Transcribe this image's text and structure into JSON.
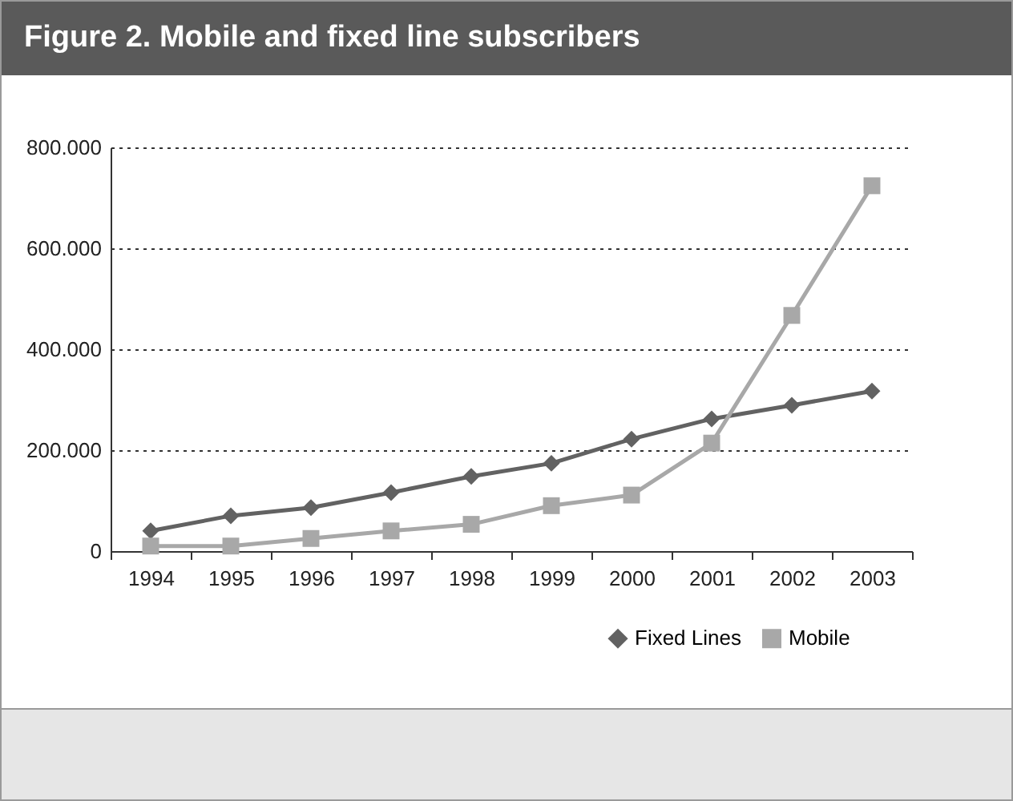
{
  "chart_data": {
    "type": "line",
    "title": "Figure 2. Mobile and fixed line subscribers",
    "categories": [
      "1994",
      "1995",
      "1996",
      "1997",
      "1998",
      "1999",
      "2000",
      "2001",
      "2002",
      "2003"
    ],
    "series": [
      {
        "name": "Fixed Lines",
        "color": "#626262",
        "marker": "diamond",
        "values": [
          40000,
          70000,
          86000,
          116000,
          148000,
          174000,
          222000,
          262000,
          289000,
          317000
        ]
      },
      {
        "name": "Mobile",
        "color": "#a8a8a8",
        "marker": "square",
        "values": [
          10000,
          10000,
          25000,
          40000,
          53000,
          90000,
          111000,
          214000,
          467000,
          724000
        ]
      }
    ],
    "ylim": [
      0,
      800000
    ],
    "yticks": [
      {
        "value": 0,
        "label": "0"
      },
      {
        "value": 200000,
        "label": "200.000"
      },
      {
        "value": 400000,
        "label": "400.000"
      },
      {
        "value": 600000,
        "label": "600.000"
      },
      {
        "value": 800000,
        "label": "800.000"
      }
    ],
    "grid": "y",
    "legend": "bottom right",
    "line_style": "solid"
  }
}
